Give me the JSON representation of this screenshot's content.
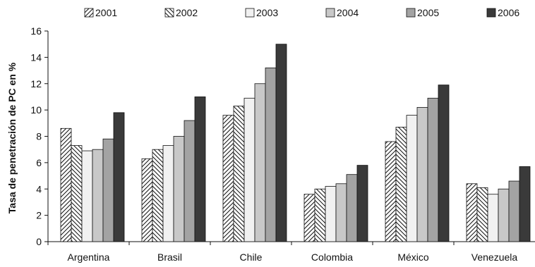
{
  "chart_data": {
    "type": "bar",
    "title": "",
    "xlabel": "",
    "ylabel": "Tasa de penetración de PC en %",
    "ylim": [
      0,
      16
    ],
    "yticks": [
      0,
      2,
      4,
      6,
      8,
      10,
      12,
      14,
      16
    ],
    "grid": false,
    "legend_position": "top",
    "categories": [
      "Argentina",
      "Brasil",
      "Chile",
      "Colombia",
      "México",
      "Venezuela"
    ],
    "series": [
      {
        "name": "2001",
        "pattern": "diag-up",
        "color": "#ffffff",
        "values": [
          8.6,
          6.3,
          9.6,
          3.6,
          7.6,
          4.4
        ]
      },
      {
        "name": "2002",
        "pattern": "diag-down",
        "color": "#ffffff",
        "values": [
          7.3,
          7.0,
          10.3,
          4.0,
          8.7,
          4.1
        ]
      },
      {
        "name": "2003",
        "pattern": "solid",
        "color": "#f1f1f1",
        "values": [
          6.9,
          7.3,
          10.9,
          4.2,
          9.6,
          3.6
        ]
      },
      {
        "name": "2004",
        "pattern": "solid",
        "color": "#c8c8c8",
        "values": [
          7.0,
          8.0,
          12.0,
          4.4,
          10.2,
          4.0
        ]
      },
      {
        "name": "2005",
        "pattern": "solid",
        "color": "#a3a3a3",
        "values": [
          7.8,
          9.2,
          13.2,
          5.1,
          10.9,
          4.6
        ]
      },
      {
        "name": "2006",
        "pattern": "solid",
        "color": "#3a3a3a",
        "values": [
          9.8,
          11.0,
          15.0,
          5.8,
          11.9,
          5.7
        ]
      }
    ]
  }
}
